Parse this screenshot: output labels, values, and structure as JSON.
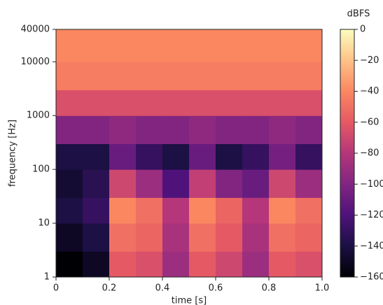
{
  "chart_data": {
    "type": "heatmap",
    "xlabel": "time [s]",
    "ylabel": "frequency [Hz]",
    "colorbar_label": "dBFS",
    "xbins": [
      0,
      0.1,
      0.2,
      0.3,
      0.4,
      0.5,
      0.6,
      0.7,
      0.8,
      0.9,
      1
    ],
    "ybins": [
      1,
      3,
      10,
      30,
      100,
      300,
      1000,
      3000,
      10000,
      40000
    ],
    "values": [
      [
        -160,
        -150,
        -60,
        -65,
        -90,
        -60,
        -70,
        -90,
        -60,
        -65
      ],
      [
        -150,
        -140,
        -50,
        -55,
        -85,
        -50,
        -60,
        -85,
        -50,
        -55
      ],
      [
        -140,
        -130,
        -40,
        -50,
        -80,
        -40,
        -55,
        -80,
        -40,
        -50
      ],
      [
        -145,
        -135,
        -70,
        -90,
        -120,
        -75,
        -100,
        -110,
        -70,
        -90
      ],
      [
        -140,
        -140,
        -110,
        -130,
        -140,
        -110,
        -140,
        -130,
        -105,
        -130
      ],
      [
        -100,
        -100,
        -95,
        -100,
        -100,
        -95,
        -100,
        -100,
        -95,
        -100
      ],
      [
        -65,
        -65,
        -65,
        -65,
        -65,
        -65,
        -65,
        -65,
        -65,
        -65
      ],
      [
        -45,
        -45,
        -45,
        -45,
        -45,
        -45,
        -45,
        -45,
        -45,
        -45
      ],
      [
        -40,
        -40,
        -40,
        -40,
        -40,
        -40,
        -40,
        -40,
        -40,
        -40
      ]
    ],
    "xlim": [
      0,
      1
    ],
    "xticks": [
      0,
      0.2,
      0.4,
      0.6,
      0.8,
      {
        "value": 1,
        "label": "1.0"
      }
    ],
    "ylim": [
      1,
      40000
    ],
    "log_y": true,
    "yticks": [
      1,
      10,
      100,
      1000,
      10000,
      40000
    ],
    "clim": [
      -160,
      0
    ],
    "cticks": [
      0,
      {
        "value": -20,
        "label": "−20"
      },
      {
        "value": -40,
        "label": "−40"
      },
      {
        "value": -60,
        "label": "−60"
      },
      {
        "value": -80,
        "label": "−80"
      },
      {
        "value": -100,
        "label": "−100"
      },
      {
        "value": -120,
        "label": "−120"
      },
      {
        "value": -140,
        "label": "−140"
      },
      {
        "value": -160,
        "label": "−160"
      }
    ],
    "colormap": [
      "#000004",
      "#1c1044",
      "#4f127b",
      "#812581",
      "#b5367a",
      "#e55964",
      "#fb8761",
      "#fec287",
      "#fcfdbf"
    ]
  }
}
